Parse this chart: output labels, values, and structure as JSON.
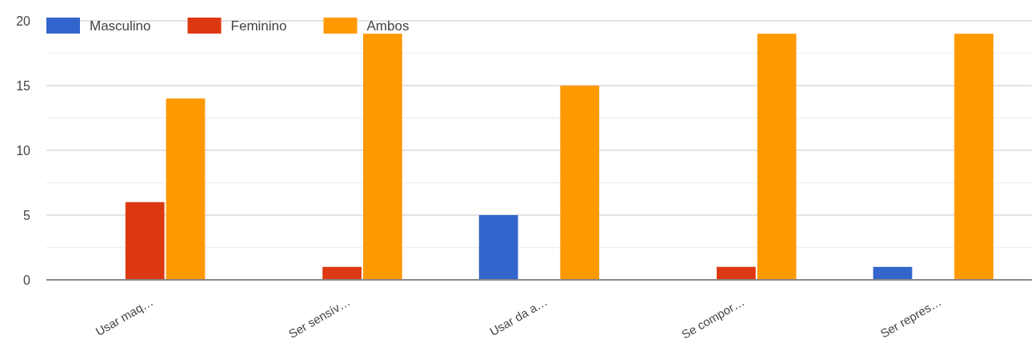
{
  "chart_data": {
    "type": "bar",
    "categories": [
      "Usar maq…",
      "Ser sensív…",
      "Usar da a…",
      "Se compor…",
      "Ser repres…"
    ],
    "series": [
      {
        "name": "Masculino",
        "color": "#3366cc",
        "values": [
          0,
          0,
          5,
          0,
          1
        ]
      },
      {
        "name": "Feminino",
        "color": "#dc3912",
        "values": [
          6,
          1,
          0,
          1,
          0
        ]
      },
      {
        "name": "Ambos",
        "color": "#ff9900",
        "values": [
          14,
          19,
          15,
          19,
          19
        ]
      }
    ],
    "ylim": [
      0,
      20
    ],
    "yticks": [
      0,
      {
        "value": 2.5,
        "label": null
      },
      5,
      {
        "value": 7.5,
        "label": null
      },
      10,
      {
        "value": 12.5,
        "label": null
      },
      15,
      {
        "value": 17.5,
        "label": null
      },
      20
    ],
    "grid": true,
    "legend": "top left"
  }
}
